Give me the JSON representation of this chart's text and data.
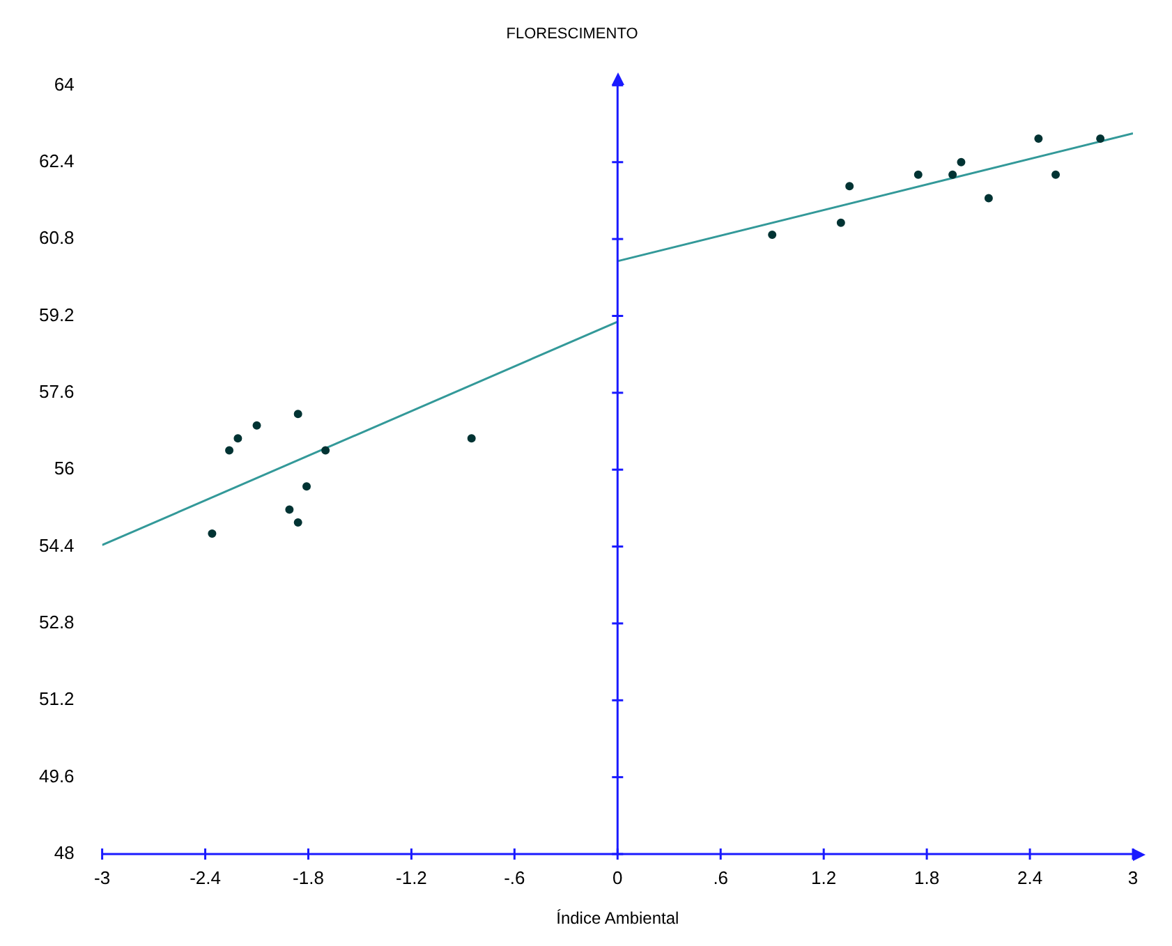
{
  "chart_data": {
    "type": "scatter",
    "title": "FLORESCIMENTO",
    "xlabel": "Índice Ambiental",
    "xlim": [
      -3,
      3
    ],
    "ylim": [
      48,
      64
    ],
    "xticks": [
      -3,
      -2.4,
      -1.8,
      -1.2,
      {
        "value": -0.6,
        "label": "-.6"
      },
      0,
      {
        "value": 0.6,
        "label": ".6"
      },
      1.2,
      1.8,
      2.4,
      3
    ],
    "yticks": [
      48,
      49.6,
      51.2,
      52.8,
      54.4,
      56,
      57.6,
      59.2,
      60.8,
      62.4,
      64
    ],
    "grid": false,
    "legend": false,
    "marker": "circle",
    "ref_lines": [
      {
        "axis": "x",
        "value": 0,
        "color": "#1a1aff"
      }
    ],
    "series": [
      {
        "color": "#003333",
        "x": [
          -2.36,
          -2.26,
          -2.21,
          -2.1,
          -1.86,
          -1.7,
          -1.81,
          -1.91,
          -1.86,
          -0.85,
          0.9,
          1.3,
          1.35,
          1.75,
          1.95,
          2.0,
          2.16,
          2.45,
          2.55,
          2.81
        ],
        "values": [
          54.67,
          56.4,
          56.65,
          56.92,
          57.16,
          56.4,
          55.65,
          55.17,
          54.9,
          56.65,
          60.89,
          61.14,
          61.9,
          62.14,
          62.14,
          62.4,
          61.65,
          62.89,
          62.14,
          62.89
        ]
      },
      {
        "type": "line",
        "color": "#339999",
        "marker": "none",
        "x": [
          -3,
          0
        ],
        "values": [
          54.43,
          59.08
        ]
      },
      {
        "type": "line",
        "color": "#339999",
        "marker": "none",
        "x": [
          0,
          3
        ],
        "values": [
          60.34,
          63.0
        ]
      }
    ]
  }
}
